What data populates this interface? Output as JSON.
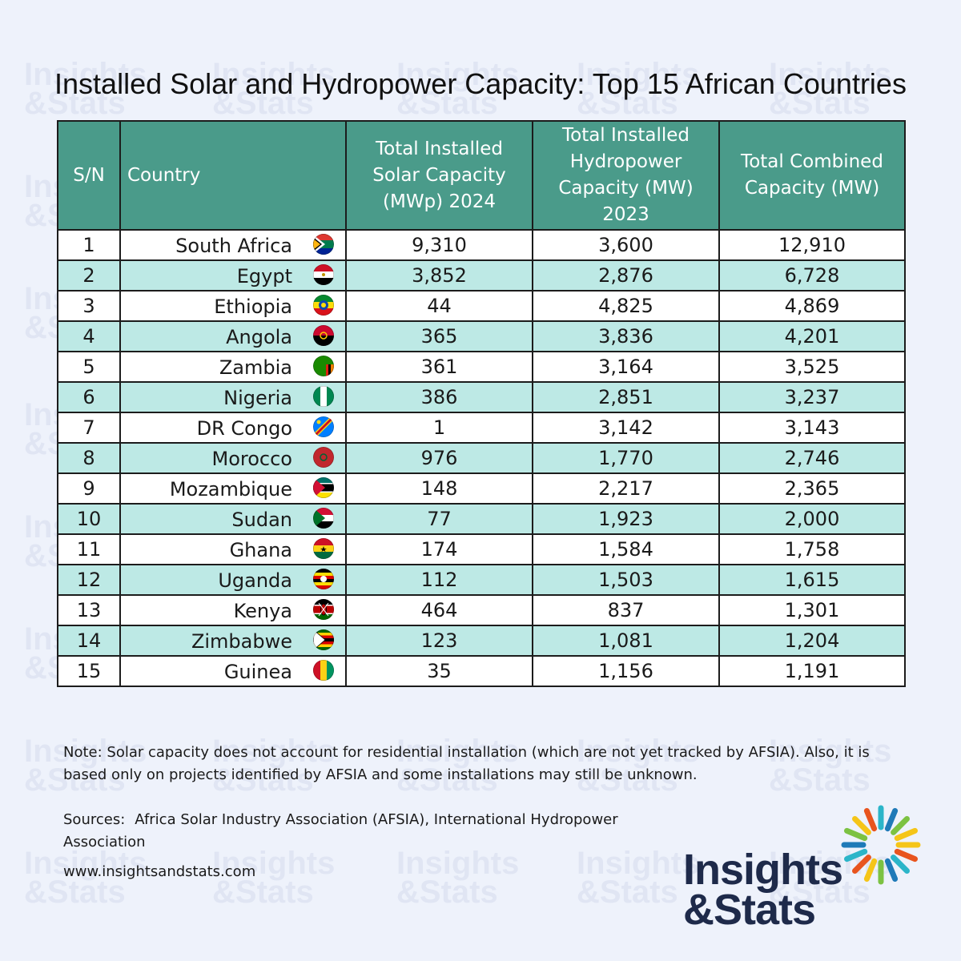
{
  "title": "Installed Solar and Hydropower Capacity: Top 15 African Countries",
  "headers": {
    "sn": "S/N",
    "country": "Country",
    "solar": "Total Installed Solar Capacity (MWp) 2024",
    "hydro": "Total Installed Hydropower Capacity (MW) 2023",
    "combined": "Total Combined Capacity (MW)"
  },
  "rows": [
    {
      "sn": "1",
      "country": "South Africa",
      "flag": "south-africa-flag",
      "solar": "9,310",
      "hydro": "3,600",
      "combined": "12,910"
    },
    {
      "sn": "2",
      "country": "Egypt",
      "flag": "egypt-flag",
      "solar": "3,852",
      "hydro": "2,876",
      "combined": "6,728"
    },
    {
      "sn": "3",
      "country": "Ethiopia",
      "flag": "ethiopia-flag",
      "solar": "44",
      "hydro": "4,825",
      "combined": "4,869"
    },
    {
      "sn": "4",
      "country": "Angola",
      "flag": "angola-flag",
      "solar": "365",
      "hydro": "3,836",
      "combined": "4,201"
    },
    {
      "sn": "5",
      "country": "Zambia",
      "flag": "zambia-flag",
      "solar": "361",
      "hydro": "3,164",
      "combined": "3,525"
    },
    {
      "sn": "6",
      "country": "Nigeria",
      "flag": "nigeria-flag",
      "solar": "386",
      "hydro": "2,851",
      "combined": "3,237"
    },
    {
      "sn": "7",
      "country": "DR Congo",
      "flag": "dr-congo-flag",
      "solar": "1",
      "hydro": "3,142",
      "combined": "3,143"
    },
    {
      "sn": "8",
      "country": "Morocco",
      "flag": "morocco-flag",
      "solar": "976",
      "hydro": "1,770",
      "combined": "2,746"
    },
    {
      "sn": "9",
      "country": "Mozambique",
      "flag": "mozambique-flag",
      "solar": "148",
      "hydro": "2,217",
      "combined": "2,365"
    },
    {
      "sn": "10",
      "country": "Sudan",
      "flag": "sudan-flag",
      "solar": "77",
      "hydro": "1,923",
      "combined": "2,000"
    },
    {
      "sn": "11",
      "country": "Ghana",
      "flag": "ghana-flag",
      "solar": "174",
      "hydro": "1,584",
      "combined": "1,758"
    },
    {
      "sn": "12",
      "country": "Uganda",
      "flag": "uganda-flag",
      "solar": "112",
      "hydro": "1,503",
      "combined": "1,615"
    },
    {
      "sn": "13",
      "country": "Kenya",
      "flag": "kenya-flag",
      "solar": "464",
      "hydro": "837",
      "combined": "1,301"
    },
    {
      "sn": "14",
      "country": "Zimbabwe",
      "flag": "zimbabwe-flag",
      "solar": "123",
      "hydro": "1,081",
      "combined": "1,204"
    },
    {
      "sn": "15",
      "country": "Guinea",
      "flag": "guinea-flag",
      "solar": "35",
      "hydro": "1,156",
      "combined": "1,191"
    }
  ],
  "note": "Note:  Solar capacity does not account for residential installation (which are not yet tracked by AFSIA). Also, it is based only on projects identified by AFSIA and some installations may still be unknown.",
  "sources_label": "Sources:",
  "sources": "Africa Solar Industry Association (AFSIA), International Hydropower Association",
  "url": "www.insightsandstats.com",
  "logo": {
    "line1": "Insights",
    "line2": "&Stats",
    "burst_colors": [
      "#f5c518",
      "#e8541e",
      "#2bb5c9",
      "#1f7ab8",
      "#7cc242"
    ]
  },
  "colors": {
    "header_bg": "#4a9b8a",
    "row_alt": "#bde9e5",
    "row": "#ffffff",
    "background": "#eef2fb",
    "logo_text": "#1e2a4a"
  },
  "chart_data": {
    "type": "table",
    "title": "Installed Solar and Hydropower Capacity: Top 15 African Countries",
    "columns": [
      "S/N",
      "Country",
      "Total Installed Solar Capacity (MWp) 2024",
      "Total Installed Hydropower Capacity (MW) 2023",
      "Total Combined Capacity (MW)"
    ],
    "categories": [
      "South Africa",
      "Egypt",
      "Ethiopia",
      "Angola",
      "Zambia",
      "Nigeria",
      "DR Congo",
      "Morocco",
      "Mozambique",
      "Sudan",
      "Ghana",
      "Uganda",
      "Kenya",
      "Zimbabwe",
      "Guinea"
    ],
    "series": [
      {
        "name": "Total Installed Solar Capacity (MWp) 2024",
        "values": [
          9310,
          3852,
          44,
          365,
          361,
          386,
          1,
          976,
          148,
          77,
          174,
          112,
          464,
          123,
          35
        ]
      },
      {
        "name": "Total Installed Hydropower Capacity (MW) 2023",
        "values": [
          3600,
          2876,
          4825,
          3836,
          3164,
          2851,
          3142,
          1770,
          2217,
          1923,
          1584,
          1503,
          837,
          1081,
          1156
        ]
      },
      {
        "name": "Total Combined Capacity (MW)",
        "values": [
          12910,
          6728,
          4869,
          4201,
          3525,
          3237,
          3143,
          2746,
          2365,
          2000,
          1758,
          1615,
          1301,
          1204,
          1191
        ]
      }
    ]
  }
}
